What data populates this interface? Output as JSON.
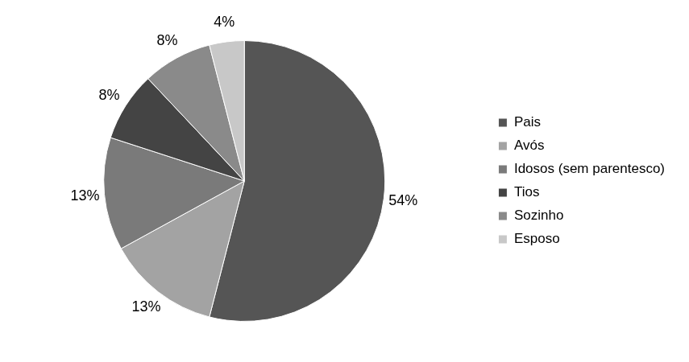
{
  "chart_data": {
    "type": "pie",
    "categories": [
      "Pais",
      "Avós",
      "Idosos (sem parentesco)",
      "Tios",
      "Sozinho",
      "Esposo"
    ],
    "values": [
      54,
      13,
      13,
      8,
      8,
      4
    ],
    "value_labels": [
      "54%",
      "13%",
      "13%",
      "8%",
      "8%",
      "4%"
    ],
    "colors": [
      "#555555",
      "#a3a3a3",
      "#7a7a7a",
      "#444444",
      "#8a8a8a",
      "#c8c8c8"
    ],
    "data_labels": true,
    "legend": "right"
  }
}
